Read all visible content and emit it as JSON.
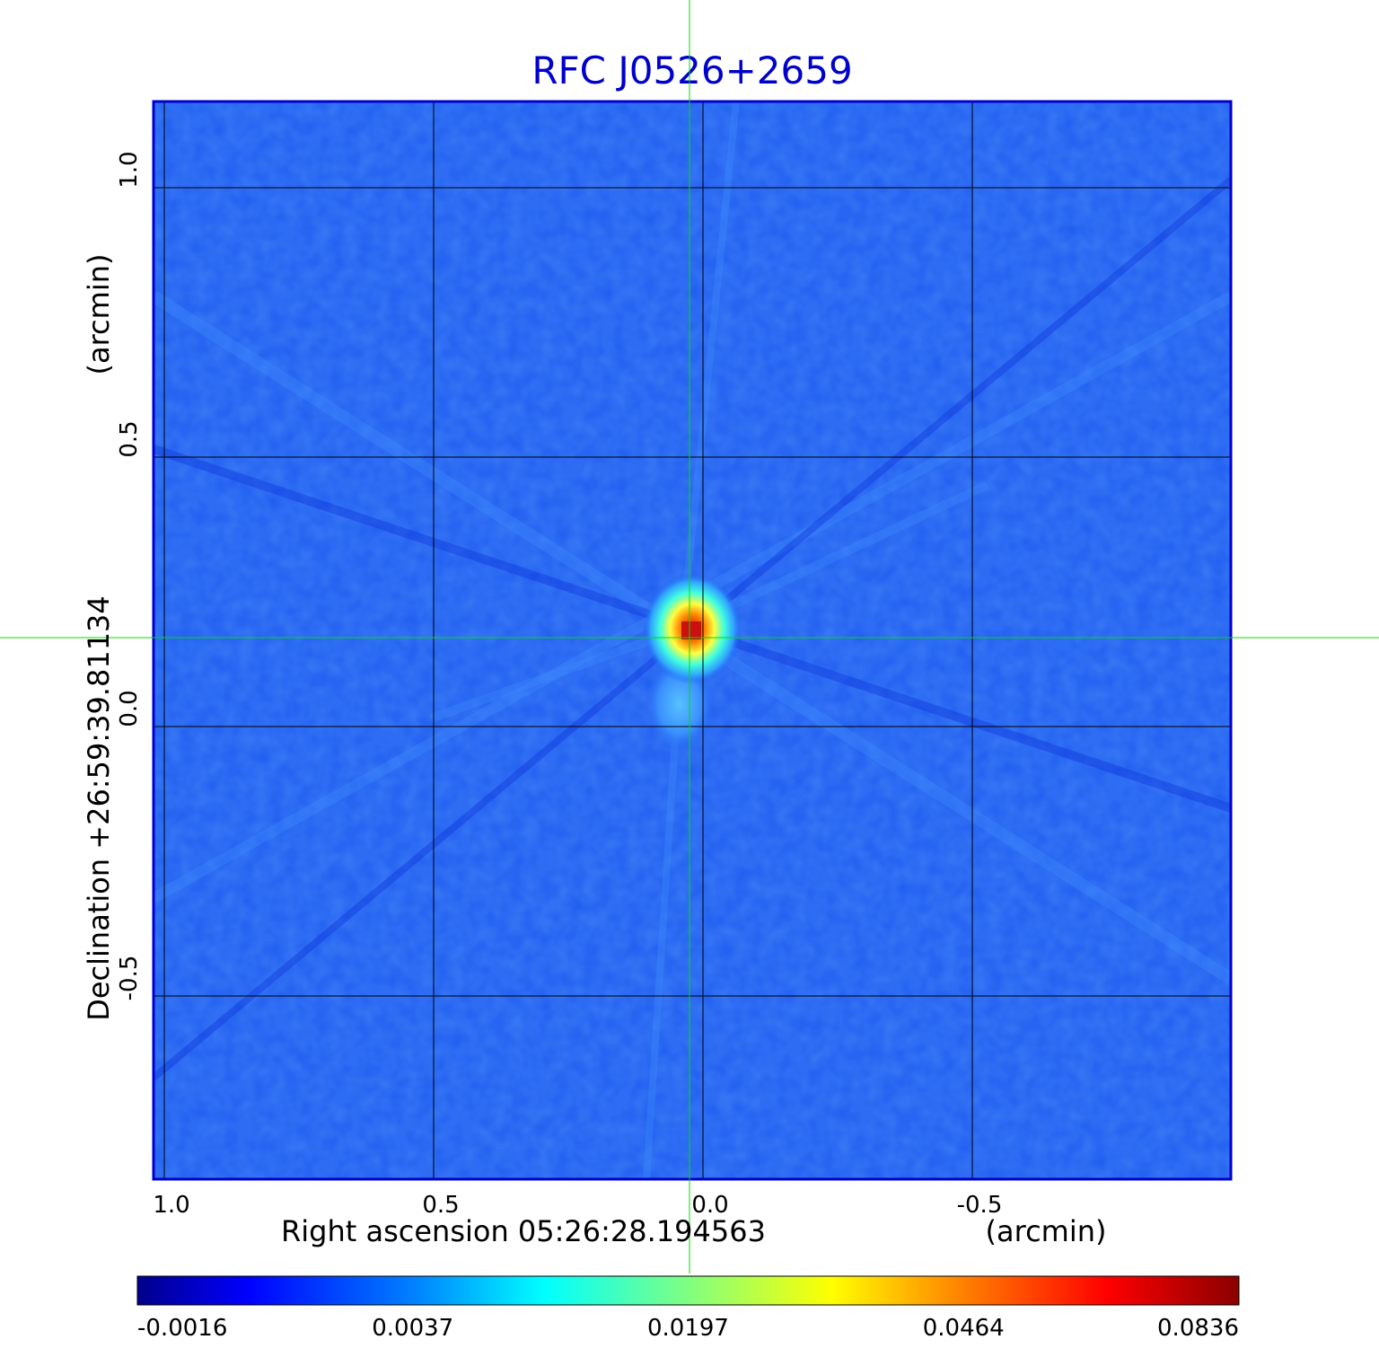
{
  "chart_data": {
    "type": "heatmap",
    "title": "RFC J0526+2659",
    "xlabel": "Right ascension  05:26:28.194563",
    "xlabel_unit": "(arcmin)",
    "ylabel": "Declination  +26:59:39.81134",
    "ylabel_unit": "(arcmin)",
    "x_range": [
      1.02,
      -0.98
    ],
    "y_range": [
      -0.84,
      1.16
    ],
    "x_ticks": [
      {
        "value": 1.0,
        "label": "1.0"
      },
      {
        "value": 0.5,
        "label": "0.5"
      },
      {
        "value": 0.0,
        "label": "0.0"
      },
      {
        "value": -0.5,
        "label": "-0.5"
      }
    ],
    "y_ticks": [
      {
        "value": 1.0,
        "label": "1.0"
      },
      {
        "value": 0.5,
        "label": "0.5"
      },
      {
        "value": 0.0,
        "label": "0.0"
      },
      {
        "value": -0.5,
        "label": "-0.5"
      }
    ],
    "grid": true,
    "crosshair": {
      "x": 0.025,
      "y": 0.165,
      "color": "#00dd00"
    },
    "source": {
      "x": 0.0,
      "y": 0.175,
      "peak": 0.0836
    },
    "colorbar": {
      "labels": [
        "-0.0016",
        "0.0037",
        "0.0197",
        "0.0464",
        "0.0836"
      ],
      "colormap": [
        "#00008b",
        "#0000ff",
        "#0080ff",
        "#00ffff",
        "#80ff80",
        "#ffff00",
        "#ff8000",
        "#ff0000",
        "#8b0000"
      ]
    },
    "colors": {
      "title": "#0000cc",
      "frame": "#0000cc",
      "background_field": "#1f5cf0"
    }
  }
}
